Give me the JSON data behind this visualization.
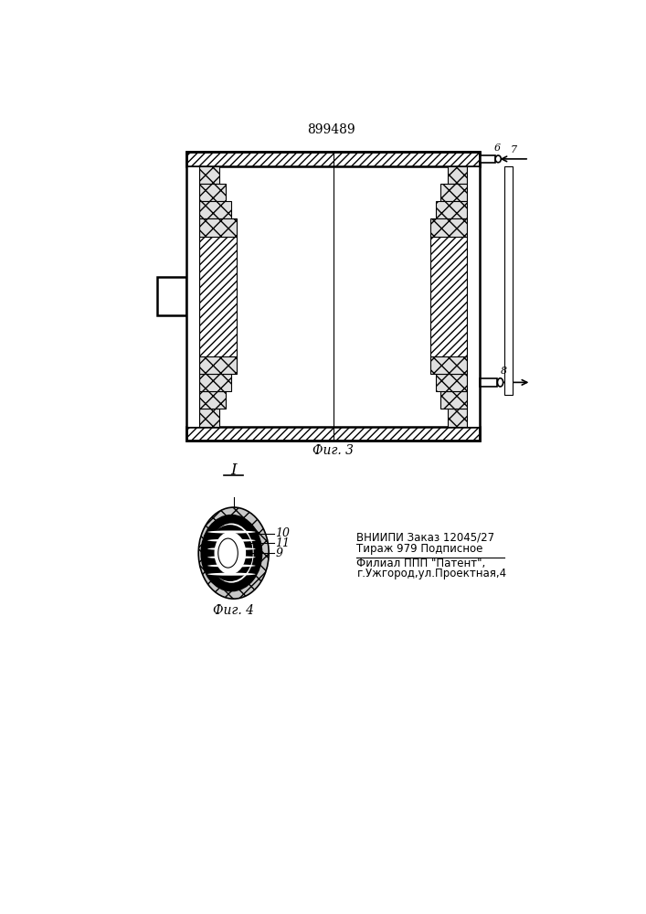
{
  "title": "899489",
  "title_fontsize": 10,
  "fig3_label": "Фиг. 3",
  "fig4_label": "Фиг. 4",
  "label_I": "I",
  "label_6": "6",
  "label_7": "7",
  "label_8": "8",
  "label_9": "9",
  "label_10": "10",
  "label_11": "11",
  "vniiipi_line1": "ВНИИПИ Заказ 12045/27",
  "vniiipi_line2": "Тираж 979 Подписное",
  "filial_line1": "Филиал ППП \"Патент\",",
  "filial_line2": "г.Ужгород,ул.Проектная,4",
  "bg_color": "#ffffff",
  "line_color": "#000000"
}
